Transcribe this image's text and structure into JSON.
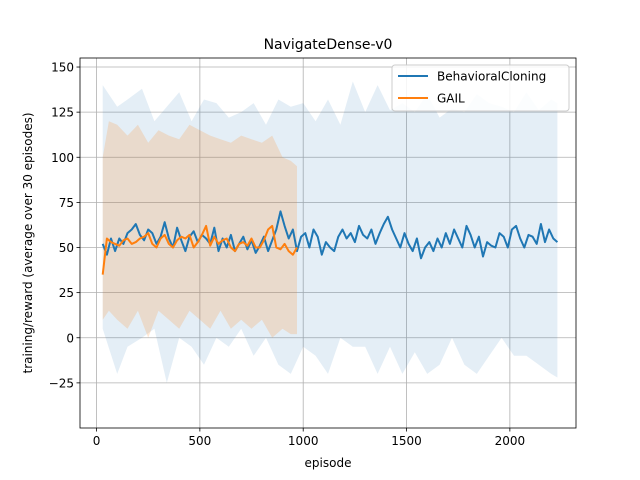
{
  "chart_data": {
    "type": "line",
    "title": "NavigateDense-v0",
    "xlabel": "episode",
    "ylabel": "training/reward (average over 30 episodes)",
    "xlim": [
      -80,
      2320
    ],
    "ylim": [
      -50,
      155
    ],
    "xticks": [
      0,
      500,
      1000,
      1500,
      2000
    ],
    "yticks": [
      -25,
      0,
      25,
      50,
      75,
      100,
      125,
      150
    ],
    "grid": true,
    "legend_position": "top-right",
    "series": [
      {
        "name": "BehavioralCloning",
        "color": "#1f77b4",
        "x": [
          30,
          50,
          70,
          90,
          110,
          130,
          150,
          170,
          190,
          210,
          230,
          250,
          270,
          290,
          310,
          330,
          350,
          370,
          390,
          410,
          430,
          450,
          470,
          490,
          510,
          530,
          550,
          570,
          590,
          610,
          630,
          650,
          670,
          690,
          710,
          730,
          750,
          770,
          790,
          810,
          830,
          850,
          870,
          890,
          910,
          930,
          950,
          970,
          990,
          1010,
          1030,
          1050,
          1070,
          1090,
          1110,
          1130,
          1150,
          1170,
          1190,
          1210,
          1230,
          1250,
          1270,
          1290,
          1310,
          1330,
          1350,
          1370,
          1390,
          1410,
          1430,
          1450,
          1470,
          1490,
          1510,
          1530,
          1550,
          1570,
          1590,
          1610,
          1630,
          1650,
          1670,
          1690,
          1710,
          1730,
          1750,
          1770,
          1790,
          1810,
          1830,
          1850,
          1870,
          1890,
          1910,
          1930,
          1950,
          1970,
          1990,
          2010,
          2030,
          2050,
          2070,
          2090,
          2110,
          2130,
          2150,
          2170,
          2190,
          2210,
          2230
        ],
        "values": [
          52,
          46,
          55,
          48,
          55,
          52,
          58,
          60,
          63,
          57,
          54,
          60,
          58,
          52,
          56,
          64,
          55,
          50,
          61,
          54,
          48,
          56,
          59,
          53,
          57,
          55,
          52,
          61,
          48,
          55,
          50,
          57,
          48,
          52,
          56,
          49,
          54,
          47,
          51,
          56,
          48,
          54,
          60,
          70,
          62,
          55,
          60,
          48,
          56,
          58,
          50,
          60,
          56,
          46,
          53,
          50,
          48,
          56,
          60,
          55,
          58,
          53,
          62,
          57,
          55,
          60,
          52,
          58,
          63,
          67,
          60,
          55,
          50,
          58,
          52,
          48,
          55,
          44,
          50,
          53,
          48,
          55,
          50,
          58,
          52,
          60,
          55,
          50,
          62,
          57,
          50,
          56,
          45,
          53,
          51,
          50,
          58,
          56,
          50,
          60,
          62,
          55,
          50,
          57,
          56,
          52,
          63,
          53,
          60,
          55,
          53
        ],
        "band": [
          [
            30,
            5,
            140
          ],
          [
            100,
            -20,
            128
          ],
          [
            150,
            -5,
            132
          ],
          [
            220,
            0,
            138
          ],
          [
            280,
            5,
            120
          ],
          [
            340,
            -25,
            128
          ],
          [
            400,
            0,
            136
          ],
          [
            460,
            -5,
            120
          ],
          [
            520,
            -15,
            132
          ],
          [
            580,
            0,
            130
          ],
          [
            640,
            -5,
            122
          ],
          [
            700,
            5,
            125
          ],
          [
            760,
            -10,
            130
          ],
          [
            820,
            0,
            118
          ],
          [
            880,
            -15,
            132
          ],
          [
            940,
            -20,
            128
          ],
          [
            1000,
            -5,
            130
          ],
          [
            1060,
            -10,
            120
          ],
          [
            1120,
            -20,
            132
          ],
          [
            1180,
            0,
            118
          ],
          [
            1240,
            -5,
            142
          ],
          [
            1300,
            -5,
            125
          ],
          [
            1360,
            -20,
            140
          ],
          [
            1420,
            -5,
            126
          ],
          [
            1480,
            -20,
            130
          ],
          [
            1540,
            -8,
            125
          ],
          [
            1600,
            -20,
            135
          ],
          [
            1660,
            -15,
            122
          ],
          [
            1720,
            0,
            127
          ],
          [
            1780,
            -15,
            125
          ],
          [
            1840,
            -20,
            135
          ],
          [
            1900,
            -10,
            130
          ],
          [
            1960,
            0,
            128
          ],
          [
            2020,
            -10,
            125
          ],
          [
            2080,
            -10,
            136
          ],
          [
            2140,
            -15,
            126
          ],
          [
            2200,
            -20,
            132
          ],
          [
            2230,
            -22,
            130
          ]
        ]
      },
      {
        "name": "GAIL",
        "color": "#ff7f0e",
        "x": [
          30,
          50,
          70,
          90,
          110,
          130,
          150,
          170,
          190,
          210,
          230,
          250,
          270,
          290,
          310,
          330,
          350,
          370,
          390,
          410,
          430,
          450,
          470,
          490,
          510,
          530,
          550,
          570,
          590,
          610,
          630,
          650,
          670,
          690,
          710,
          730,
          750,
          770,
          790,
          810,
          830,
          850,
          870,
          890,
          910,
          930,
          950,
          970
        ],
        "values": [
          35,
          55,
          53,
          52,
          51,
          54,
          55,
          52,
          53,
          55,
          56,
          58,
          52,
          50,
          55,
          57,
          52,
          50,
          54,
          56,
          55,
          57,
          50,
          53,
          57,
          62,
          51,
          56,
          52,
          54,
          55,
          50,
          48,
          52,
          53,
          51,
          55,
          50,
          50,
          54,
          60,
          62,
          50,
          49,
          52,
          48,
          46,
          50
        ],
        "band": [
          [
            30,
            10,
            100
          ],
          [
            60,
            15,
            120
          ],
          [
            100,
            10,
            118
          ],
          [
            150,
            5,
            112
          ],
          [
            200,
            15,
            118
          ],
          [
            250,
            0,
            108
          ],
          [
            300,
            15,
            115
          ],
          [
            350,
            10,
            112
          ],
          [
            400,
            5,
            110
          ],
          [
            450,
            15,
            118
          ],
          [
            500,
            10,
            115
          ],
          [
            550,
            5,
            112
          ],
          [
            600,
            15,
            110
          ],
          [
            650,
            5,
            108
          ],
          [
            700,
            10,
            112
          ],
          [
            750,
            5,
            110
          ],
          [
            800,
            10,
            108
          ],
          [
            850,
            0,
            112
          ],
          [
            900,
            5,
            100
          ],
          [
            940,
            2,
            98
          ],
          [
            970,
            2,
            95
          ]
        ]
      }
    ]
  }
}
